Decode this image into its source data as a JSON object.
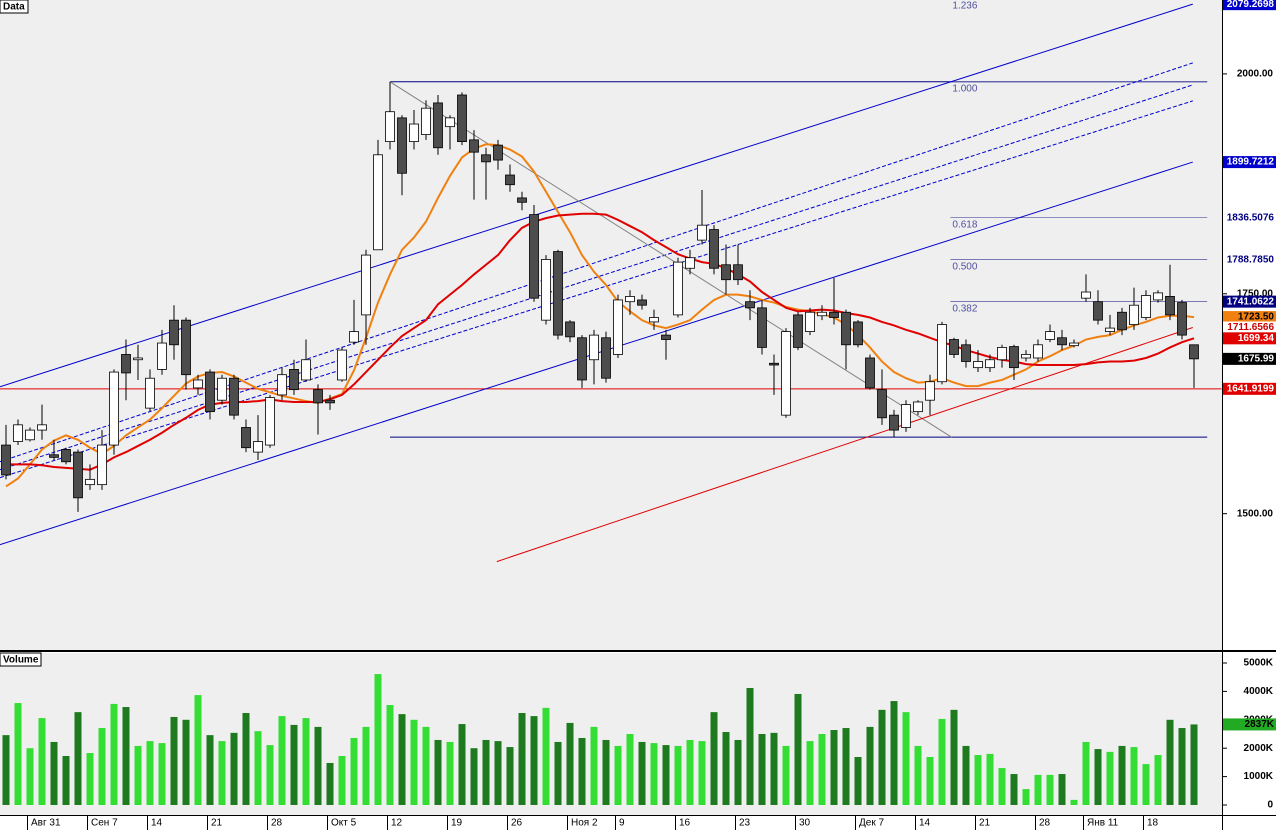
{
  "chart_data": [
    {
      "type": "candlestick",
      "title": "Data",
      "categories": [
        null,
        null,
        "Авг 31",
        null,
        null,
        null,
        null,
        "Сен 7",
        null,
        null,
        null,
        null,
        "14",
        null,
        null,
        null,
        null,
        "21",
        null,
        null,
        null,
        null,
        "28",
        null,
        null,
        null,
        null,
        "Окт 5",
        null,
        null,
        null,
        null,
        "12",
        null,
        null,
        null,
        null,
        "19",
        null,
        null,
        null,
        null,
        "26",
        null,
        null,
        null,
        null,
        "Ноя 2",
        null,
        null,
        null,
        "9",
        null,
        null,
        null,
        null,
        "16",
        null,
        null,
        null,
        null,
        "23",
        null,
        null,
        null,
        null,
        "30",
        null,
        null,
        null,
        null,
        "Дек 7",
        null,
        null,
        null,
        null,
        "14",
        null,
        null,
        null,
        null,
        "21",
        null,
        null,
        null,
        null,
        "28",
        null,
        null,
        null,
        "Янв 11",
        null,
        null,
        null,
        null,
        "18",
        null,
        null,
        null,
        null
      ],
      "open": [
        1578,
        1582,
        1584,
        1595,
        1567,
        1573,
        1570,
        1533,
        1533,
        1578,
        1681,
        1675,
        1620,
        1664,
        1720,
        1720,
        1643,
        1661,
        1629,
        1654,
        1598,
        1570,
        1578,
        1635,
        1664,
        1652,
        1641,
        1629,
        1652,
        1695,
        1726,
        1800,
        1923,
        1950,
        1923,
        1931,
        1967,
        1940,
        1976,
        1925,
        1908,
        1919,
        1885,
        1859,
        1840,
        1720,
        1798,
        1718,
        1700,
        1675,
        1700,
        1681,
        1741,
        1743,
        1718,
        1703,
        1726,
        1779,
        1811,
        1823,
        1783,
        1783,
        1741,
        1734,
        1671,
        1612,
        1726,
        1707,
        1725,
        1729,
        1729,
        1718,
        1677,
        1641,
        1612,
        1598,
        1616,
        1629,
        1650,
        1698,
        1692,
        1666,
        1666,
        1675,
        1690,
        1677,
        1677,
        1698,
        1700,
        1691,
        1745,
        1741,
        1707,
        1729,
        1715,
        1723,
        1743,
        1747,
        1740,
        1692
      ],
      "high": [
        1601,
        1607,
        1598,
        1624,
        1584,
        1575,
        1573,
        1556,
        1595,
        1664,
        1698,
        1692,
        1664,
        1709,
        1737,
        1723,
        1658,
        1664,
        1658,
        1658,
        1607,
        1612,
        1635,
        1666,
        1675,
        1698,
        1647,
        1635,
        1689,
        1743,
        1800,
        1925,
        1991,
        1953,
        1959,
        1970,
        1976,
        1953,
        1979,
        1936,
        1916,
        1925,
        1897,
        1866,
        1851,
        1794,
        1800,
        1720,
        1703,
        1709,
        1707,
        1749,
        1754,
        1749,
        1732,
        1709,
        1791,
        1800,
        1868,
        1828,
        1806,
        1806,
        1754,
        1743,
        1681,
        1711,
        1729,
        1734,
        1737,
        1768,
        1732,
        1720,
        1681,
        1664,
        1618,
        1629,
        1629,
        1658,
        1718,
        1700,
        1698,
        1686,
        1681,
        1692,
        1692,
        1686,
        1698,
        1715,
        1709,
        1698,
        1772,
        1754,
        1726,
        1734,
        1757,
        1754,
        1754,
        1783,
        1743,
        1692
      ],
      "low": [
        1539,
        1578,
        1582,
        1584,
        1561,
        1556,
        1502,
        1527,
        1527,
        1567,
        1629,
        1652,
        1616,
        1658,
        1675,
        1641,
        1635,
        1607,
        1624,
        1607,
        1570,
        1561,
        1575,
        1629,
        1635,
        1650,
        1590,
        1618,
        1650,
        1692,
        1692,
        1800,
        1914,
        1862,
        1914,
        1925,
        1908,
        1914,
        1919,
        1857,
        1857,
        1891,
        1866,
        1845,
        1741,
        1715,
        1698,
        1695,
        1643,
        1647,
        1649,
        1677,
        1726,
        1732,
        1709,
        1675,
        1723,
        1772,
        1806,
        1772,
        1749,
        1760,
        1720,
        1681,
        1635,
        1609,
        1686,
        1703,
        1720,
        1715,
        1664,
        1689,
        1641,
        1601,
        1587,
        1593,
        1612,
        1612,
        1647,
        1677,
        1666,
        1661,
        1661,
        1666,
        1652,
        1673,
        1673,
        1695,
        1686,
        1689,
        1741,
        1715,
        1703,
        1703,
        1709,
        1720,
        1740,
        1720,
        1698,
        1643
      ],
      "close": [
        1544,
        1601,
        1595,
        1601,
        1564,
        1559,
        1518,
        1539,
        1578,
        1661,
        1660,
        1677,
        1654,
        1694,
        1692,
        1658,
        1652,
        1616,
        1654,
        1612,
        1575,
        1582,
        1632,
        1658,
        1641,
        1675,
        1626,
        1626,
        1686,
        1707,
        1794,
        1908,
        1957,
        1887,
        1943,
        1961,
        1916,
        1950,
        1923,
        1911,
        1900,
        1902,
        1874,
        1854,
        1745,
        1789,
        1703,
        1701,
        1652,
        1703,
        1654,
        1743,
        1747,
        1737,
        1723,
        1698,
        1786,
        1791,
        1828,
        1779,
        1766,
        1766,
        1734,
        1689,
        1669,
        1707,
        1689,
        1729,
        1729,
        1723,
        1692,
        1692,
        1643,
        1609,
        1595,
        1624,
        1627,
        1650,
        1715,
        1681,
        1673,
        1673,
        1675,
        1689,
        1666,
        1681,
        1692,
        1707,
        1692,
        1694,
        1752,
        1720,
        1711,
        1709,
        1737,
        1748,
        1751,
        1726,
        1703,
        1675.99
      ],
      "up_color": "#ffffff",
      "down_color": "#4d4d4d",
      "edge_color": "#000000",
      "lines": [
        {
          "color": "#f08010",
          "values": [
            1531,
            1540,
            1556,
            1573,
            1583,
            1589,
            1584,
            1575,
            1568,
            1577,
            1589,
            1598,
            1607,
            1620,
            1634,
            1648,
            1656,
            1660,
            1661,
            1656,
            1649,
            1642,
            1638,
            1634,
            1631,
            1628,
            1626,
            1631,
            1636,
            1663,
            1700,
            1740,
            1772,
            1800,
            1814,
            1832,
            1859,
            1884,
            1905,
            1915,
            1920,
            1919,
            1914,
            1906,
            1889,
            1866,
            1843,
            1820,
            1794,
            1775,
            1760,
            1741,
            1730,
            1720,
            1714,
            1711,
            1715,
            1720,
            1732,
            1743,
            1749,
            1749,
            1747,
            1743,
            1740,
            1735,
            1732,
            1730,
            1727,
            1723,
            1715,
            1703,
            1689,
            1673,
            1661,
            1654,
            1649,
            1650,
            1654,
            1649,
            1645,
            1645,
            1649,
            1652,
            1658,
            1664,
            1673,
            1679,
            1686,
            1691,
            1698,
            1701,
            1703,
            1709,
            1714,
            1718,
            1723,
            1725,
            1725,
            1723.5
          ]
        },
        {
          "color": "#e00000",
          "values": [
            1556,
            1556,
            1556,
            1555,
            1553,
            1552,
            1551,
            1550,
            1556,
            1564,
            1570,
            1577,
            1584,
            1592,
            1601,
            1609,
            1618,
            1624,
            1626,
            1627,
            1627,
            1628,
            1630,
            1628,
            1627,
            1627,
            1627,
            1630,
            1635,
            1647,
            1661,
            1675,
            1689,
            1702,
            1711,
            1720,
            1738,
            1749,
            1760,
            1772,
            1783,
            1794,
            1811,
            1825,
            1832,
            1836,
            1839,
            1840,
            1841,
            1841,
            1840,
            1834,
            1827,
            1820,
            1811,
            1803,
            1795,
            1790,
            1786,
            1784,
            1779,
            1772,
            1764,
            1752,
            1743,
            1734,
            1730,
            1731,
            1732,
            1731,
            1728,
            1726,
            1723,
            1718,
            1714,
            1709,
            1705,
            1700,
            1695,
            1691,
            1686,
            1682,
            1678,
            1675,
            1673,
            1670,
            1669,
            1669,
            1669,
            1669,
            1670,
            1672,
            1673,
            1673,
            1674,
            1677,
            1682,
            1689,
            1695,
            1699.34
          ]
        }
      ],
      "trendlines": [
        {
          "color": "#0000cc",
          "dash": false,
          "from": [
            -0.5,
            1644.3
          ],
          "to": [
            98.9,
            2079.2698
          ]
        },
        {
          "color": "#0000cc",
          "dash": false,
          "from": [
            -0.5,
            1464.8
          ],
          "to": [
            98.9,
            1899.7212
          ]
        },
        {
          "color": "#0000cc",
          "dash": true,
          "from": [
            -0.5,
            1559.1
          ],
          "to": [
            98.9,
            2012.5
          ]
        },
        {
          "color": "#0000cc",
          "dash": true,
          "from": [
            -0.5,
            1550
          ],
          "to": [
            98.9,
            1987.5
          ]
        },
        {
          "color": "#0000cc",
          "dash": true,
          "from": [
            -0.5,
            1541
          ],
          "to": [
            98.9,
            1969.3
          ]
        },
        {
          "color": "#808080",
          "dash": false,
          "from": [
            32,
            1991
          ],
          "to": [
            78.8,
            1587
          ]
        },
        {
          "color": "#e00000",
          "dash": false,
          "from": [
            40.9,
            1445.5
          ],
          "to": [
            98.9,
            1711.6566
          ]
        }
      ],
      "hlines": [
        {
          "value": 1641.9199,
          "color": "#e00000",
          "from": -0.5,
          "to": 101.3
        },
        {
          "value": 1991,
          "color": "#000080",
          "from": 32,
          "to": 100.1
        },
        {
          "value": 1587,
          "color": "#000080",
          "from": 32,
          "to": 100.1
        }
      ],
      "fib": {
        "color": "#5050a0",
        "from": 78.7,
        "to": 100.1,
        "levels": [
          {
            "label": "1.236",
            "value": 2086.4
          },
          {
            "label": "1.000",
            "value": 1991
          },
          {
            "label": "0.618",
            "value": 1836.5076
          },
          {
            "label": "0.500",
            "value": 1788.785
          },
          {
            "label": "0.382",
            "value": 1741.0622
          }
        ]
      },
      "ylim": [
        1345,
        2084
      ],
      "yticks": [
        {
          "value": 1500,
          "label": "1500.00"
        },
        {
          "value": 1750,
          "label": "1750.00"
        },
        {
          "value": 2000,
          "label": "2000.00"
        }
      ],
      "markers": [
        {
          "value": 2079.2698,
          "bg": "#0000cc",
          "fg": "#ffffff"
        },
        {
          "value": 1899.7212,
          "bg": "#0000cc",
          "fg": "#ffffff"
        },
        {
          "value": 1836.5076,
          "bg": "#ffffff",
          "fg": "#000080"
        },
        {
          "value": 1788.785,
          "label": "1788.7850",
          "bg": "#ffffff",
          "fg": "#000080"
        },
        {
          "value": 1741.0622,
          "bg": "#000080",
          "fg": "#ffffff"
        },
        {
          "value": 1723.5,
          "label": "1723.50",
          "bg": "#f08010",
          "fg": "#000000"
        },
        {
          "value": 1711.6566,
          "bg": "#ffffff",
          "fg": "#cc0000"
        },
        {
          "value": 1699.34,
          "bg": "#e00000",
          "fg": "#ffffff"
        },
        {
          "value": 1675.99,
          "bg": "#000000",
          "fg": "#ffffff"
        },
        {
          "value": 1641.9199,
          "bg": "#e00000",
          "fg": "#ffffff"
        }
      ]
    },
    {
      "type": "bar",
      "title": "Volume",
      "values": [
        2460,
        3590,
        2000,
        3060,
        2220,
        1725,
        3270,
        1830,
        2710,
        3560,
        3450,
        2080,
        2250,
        2180,
        3100,
        3000,
        3870,
        2460,
        2250,
        2540,
        3240,
        2600,
        2110,
        3130,
        2820,
        3060,
        2750,
        1480,
        1725,
        2360,
        2750,
        4610,
        3520,
        3200,
        3000,
        2750,
        2290,
        2220,
        2850,
        2000,
        2290,
        2250,
        2040,
        3240,
        3130,
        3420,
        2220,
        2890,
        2360,
        2750,
        2290,
        2080,
        2500,
        2220,
        2180,
        2110,
        2080,
        2290,
        2250,
        3270,
        2570,
        2290,
        4120,
        2500,
        2540,
        2080,
        3910,
        2250,
        2500,
        2640,
        2710,
        1690,
        2750,
        3350,
        3660,
        3270,
        2080,
        1690,
        3030,
        3350,
        2080,
        1760,
        1800,
        1300,
        1090,
        560,
        1060,
        1060,
        1090,
        180,
        2220,
        1970,
        1870,
        2080,
        2040,
        1440,
        1760,
        3000,
        2710,
        2837
      ],
      "up_color": "#33dd33",
      "down_color": "#1e7a1e",
      "ylim": [
        0,
        5000
      ],
      "yticks": [
        0,
        {
          "value": 1000,
          "label": "1000K"
        },
        {
          "value": 2000,
          "label": "2000K"
        },
        {
          "value": 3000,
          "label": "3000K"
        },
        {
          "value": 4000,
          "label": "4000K"
        },
        {
          "value": 5000,
          "label": "5000K"
        }
      ],
      "marker": {
        "value": 2837,
        "label": "2837K",
        "bg": "#22aa22",
        "fg": "#000000"
      }
    }
  ]
}
